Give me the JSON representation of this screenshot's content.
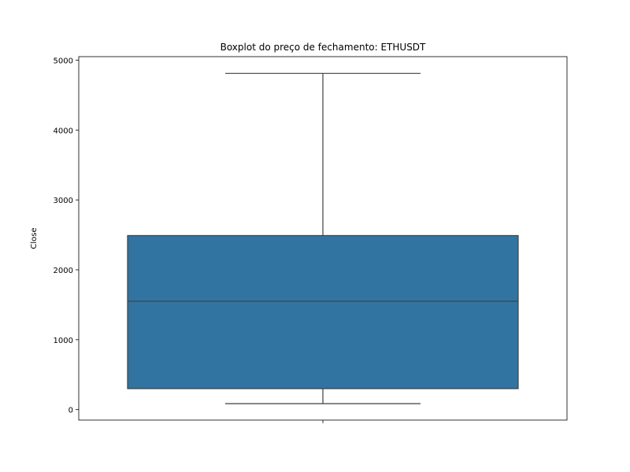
{
  "chart_data": {
    "type": "box",
    "title": "Boxplot do preço de fechamento: ETHUSDT",
    "xlabel": "",
    "ylabel": "Close",
    "ylim": [
      -150,
      5050
    ],
    "yticks": [
      0,
      1000,
      2000,
      3000,
      4000,
      5000
    ],
    "ytick_labels": [
      "0",
      "1000",
      "2000",
      "3000",
      "4000",
      "5000"
    ],
    "grid": false,
    "box": {
      "whisker_low": 85,
      "q1": 300,
      "median": 1550,
      "q3": 2490,
      "whisker_high": 4810
    },
    "colors": {
      "box_fill": "#3274a1",
      "line": "#3f3f3f",
      "axes": "#000000"
    }
  }
}
